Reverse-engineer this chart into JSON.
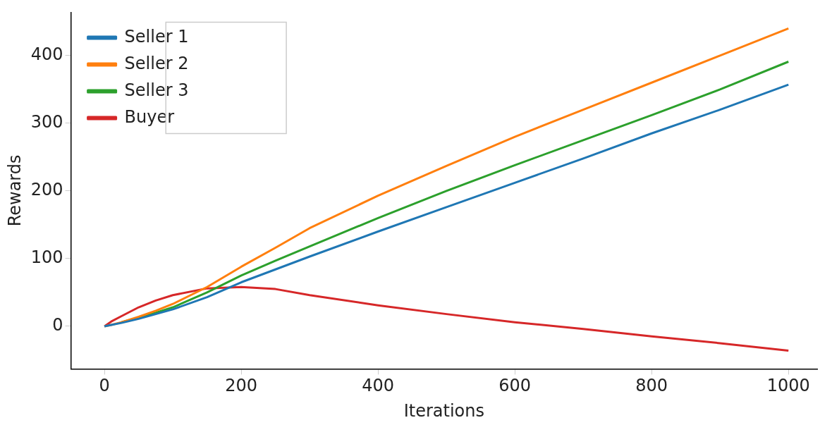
{
  "chart_data": {
    "type": "line",
    "xlabel": "Iterations",
    "ylabel": "Rewards",
    "xlim": [
      -49,
      1042
    ],
    "ylim": [
      -63,
      464
    ],
    "xticks": [
      0,
      200,
      400,
      600,
      800,
      1000
    ],
    "yticks": [
      0,
      100,
      200,
      300,
      400
    ],
    "grid": false,
    "legend": "top left",
    "marker": "none",
    "line_style": "solid",
    "x": [
      0,
      10,
      25,
      50,
      75,
      100,
      150,
      200,
      250,
      300,
      400,
      500,
      600,
      700,
      800,
      900,
      1000
    ],
    "series": [
      {
        "name": "Seller 1",
        "color": "#1f77b4",
        "values": [
          0,
          2,
          5,
          11,
          18,
          25,
          43,
          65,
          84,
          103,
          140,
          176,
          212,
          248,
          285,
          320,
          357
        ]
      },
      {
        "name": "Seller 2",
        "color": "#ff7f0e",
        "values": [
          0,
          2,
          6,
          14,
          23,
          33,
          58,
          88,
          116,
          145,
          193,
          237,
          280,
          320,
          360,
          400,
          440
        ]
      },
      {
        "name": "Seller 3",
        "color": "#2ca02c",
        "values": [
          null,
          null,
          6,
          13,
          20,
          28,
          50,
          75,
          97,
          118,
          160,
          200,
          238,
          275,
          312,
          350,
          391
        ]
      },
      {
        "name": "Buyer",
        "color": "#d62728",
        "values": [
          0,
          7,
          15,
          28,
          38,
          46,
          56,
          58,
          55,
          46,
          31,
          18,
          6,
          -4,
          -15,
          -25,
          -36
        ]
      }
    ]
  }
}
